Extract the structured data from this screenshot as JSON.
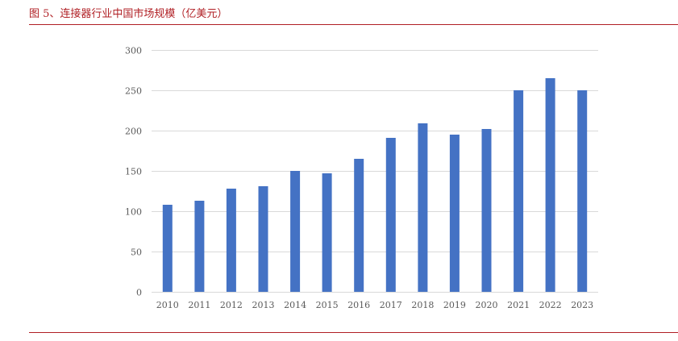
{
  "figure_title": "图 5、连接器行业中国市场规模（亿美元）",
  "colors": {
    "accent_rule": "#b01f24",
    "bar": "#4472c4",
    "grid": "#d9d9d9",
    "tick_text": "#595959"
  },
  "chart_data": {
    "type": "bar",
    "title": "",
    "xlabel": "",
    "ylabel": "",
    "categories": [
      "2010",
      "2011",
      "2012",
      "2013",
      "2014",
      "2015",
      "2016",
      "2017",
      "2018",
      "2019",
      "2020",
      "2021",
      "2022",
      "2023"
    ],
    "values": [
      108,
      113,
      128,
      131,
      150,
      147,
      165,
      191,
      209,
      195,
      202,
      250,
      265,
      250
    ],
    "ylim": [
      0,
      300
    ],
    "yticks": [
      0,
      50,
      100,
      150,
      200,
      250,
      300
    ],
    "grid": true,
    "legend": "none"
  }
}
